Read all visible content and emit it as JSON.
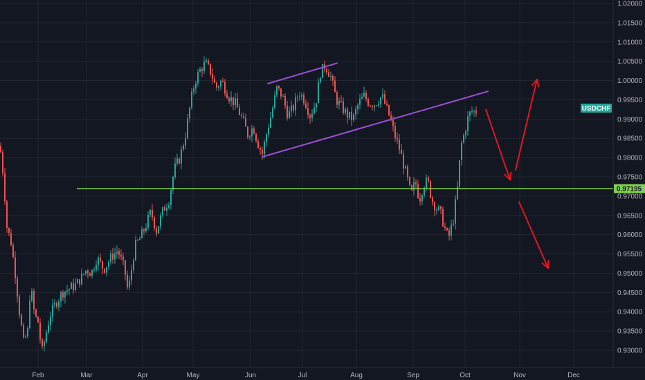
{
  "chart_data": {
    "type": "candlestick",
    "symbol": "USDCHF",
    "horizontal_line_price": "0.97195",
    "y_ticks": [
      "1.02000",
      "1.01500",
      "1.01000",
      "1.00500",
      "1.00000",
      "0.99500",
      "0.99000",
      "0.98500",
      "0.98000",
      "0.97500",
      "0.97000",
      "0.96500",
      "0.96000",
      "0.95500",
      "0.95000",
      "0.94500",
      "0.94000",
      "0.93500",
      "0.93000"
    ],
    "x_ticks": [
      "Feb",
      "Mar",
      "Apr",
      "May",
      "Jun",
      "Jul",
      "Aug",
      "Sep",
      "Oct",
      "Nov",
      "Dec"
    ],
    "ylim": [
      0.9285,
      1.0213
    ],
    "grid": true,
    "close_path": [
      {
        "t": 0,
        "p": 0.983
      },
      {
        "t": 5,
        "p": 0.975
      },
      {
        "t": 10,
        "p": 0.962
      },
      {
        "t": 16,
        "p": 0.958
      },
      {
        "t": 22,
        "p": 0.95
      },
      {
        "t": 28,
        "p": 0.94
      },
      {
        "t": 34,
        "p": 0.932
      },
      {
        "t": 40,
        "p": 0.935
      },
      {
        "t": 44,
        "p": 0.947
      },
      {
        "t": 50,
        "p": 0.939
      },
      {
        "t": 56,
        "p": 0.937
      },
      {
        "t": 60,
        "p": 0.929
      },
      {
        "t": 65,
        "p": 0.933
      },
      {
        "t": 72,
        "p": 0.939
      },
      {
        "t": 80,
        "p": 0.942
      },
      {
        "t": 90,
        "p": 0.945
      },
      {
        "t": 100,
        "p": 0.946
      },
      {
        "t": 110,
        "p": 0.947
      },
      {
        "t": 118,
        "p": 0.949
      },
      {
        "t": 125,
        "p": 0.951
      },
      {
        "t": 132,
        "p": 0.95
      },
      {
        "t": 140,
        "p": 0.954
      },
      {
        "t": 150,
        "p": 0.951
      },
      {
        "t": 160,
        "p": 0.954
      },
      {
        "t": 170,
        "p": 0.956
      },
      {
        "t": 180,
        "p": 0.951
      },
      {
        "t": 185,
        "p": 0.945
      },
      {
        "t": 195,
        "p": 0.957
      },
      {
        "t": 202,
        "p": 0.959
      },
      {
        "t": 210,
        "p": 0.962
      },
      {
        "t": 218,
        "p": 0.966
      },
      {
        "t": 226,
        "p": 0.961
      },
      {
        "t": 235,
        "p": 0.966
      },
      {
        "t": 244,
        "p": 0.969
      },
      {
        "t": 252,
        "p": 0.977
      },
      {
        "t": 260,
        "p": 0.98
      },
      {
        "t": 268,
        "p": 0.986
      },
      {
        "t": 276,
        "p": 0.995
      },
      {
        "t": 282,
        "p": 1.0
      },
      {
        "t": 290,
        "p": 1.003
      },
      {
        "t": 297,
        "p": 1.0045
      },
      {
        "t": 305,
        "p": 1.002
      },
      {
        "t": 312,
        "p": 0.998
      },
      {
        "t": 320,
        "p": 1.0
      },
      {
        "t": 330,
        "p": 0.996
      },
      {
        "t": 340,
        "p": 0.994
      },
      {
        "t": 350,
        "p": 0.99
      },
      {
        "t": 358,
        "p": 0.986
      },
      {
        "t": 366,
        "p": 0.988
      },
      {
        "t": 372,
        "p": 0.984
      },
      {
        "t": 379,
        "p": 0.981
      },
      {
        "t": 386,
        "p": 0.987
      },
      {
        "t": 393,
        "p": 0.992
      },
      {
        "t": 400,
        "p": 0.998
      },
      {
        "t": 408,
        "p": 0.996
      },
      {
        "t": 416,
        "p": 0.991
      },
      {
        "t": 424,
        "p": 0.993
      },
      {
        "t": 432,
        "p": 0.997
      },
      {
        "t": 440,
        "p": 0.995
      },
      {
        "t": 448,
        "p": 0.991
      },
      {
        "t": 456,
        "p": 0.994
      },
      {
        "t": 463,
        "p": 1.002
      },
      {
        "t": 470,
        "p": 1.004
      },
      {
        "t": 478,
        "p": 1.001
      },
      {
        "t": 486,
        "p": 0.995
      },
      {
        "t": 494,
        "p": 0.993
      },
      {
        "t": 502,
        "p": 0.991
      },
      {
        "t": 510,
        "p": 0.99
      },
      {
        "t": 518,
        "p": 0.994
      },
      {
        "t": 526,
        "p": 0.996
      },
      {
        "t": 534,
        "p": 0.994
      },
      {
        "t": 542,
        "p": 0.994
      },
      {
        "t": 552,
        "p": 0.996
      },
      {
        "t": 558,
        "p": 0.993
      },
      {
        "t": 564,
        "p": 0.99
      },
      {
        "t": 570,
        "p": 0.986
      },
      {
        "t": 576,
        "p": 0.983
      },
      {
        "t": 582,
        "p": 0.979
      },
      {
        "t": 588,
        "p": 0.975
      },
      {
        "t": 594,
        "p": 0.97
      },
      {
        "t": 600,
        "p": 0.974
      },
      {
        "t": 606,
        "p": 0.969
      },
      {
        "t": 612,
        "p": 0.973
      },
      {
        "t": 618,
        "p": 0.974
      },
      {
        "t": 624,
        "p": 0.969
      },
      {
        "t": 630,
        "p": 0.967
      },
      {
        "t": 636,
        "p": 0.966
      },
      {
        "t": 642,
        "p": 0.962
      },
      {
        "t": 648,
        "p": 0.959
      },
      {
        "t": 655,
        "p": 0.964
      },
      {
        "t": 661,
        "p": 0.972
      },
      {
        "t": 666,
        "p": 0.983
      },
      {
        "t": 672,
        "p": 0.987
      },
      {
        "t": 677,
        "p": 0.991
      },
      {
        "t": 682,
        "p": 0.992
      },
      {
        "t": 688,
        "p": 0.992
      }
    ],
    "trendlines": [
      {
        "name": "channel-upper",
        "from": {
          "t": 387,
          "p": 0.9992
        },
        "to": {
          "t": 487,
          "p": 1.0045
        }
      },
      {
        "name": "channel-lower",
        "from": {
          "t": 379,
          "p": 0.9802
        },
        "to": {
          "t": 705,
          "p": 0.9972
        }
      }
    ],
    "forecast_arrows": [
      {
        "name": "arrow-down-to-support",
        "from": {
          "t": 702,
          "p": 0.9925
        },
        "to": {
          "t": 737,
          "p": 0.9742
        }
      },
      {
        "name": "arrow-up-breakout",
        "from": {
          "t": 745,
          "p": 0.9768
        },
        "to": {
          "t": 776,
          "p": 1.0003
        }
      },
      {
        "name": "arrow-down-breakdown",
        "from": {
          "t": 750,
          "p": 0.9685
        },
        "to": {
          "t": 792,
          "p": 0.9513
        }
      }
    ]
  },
  "colors": {
    "background": "#131722",
    "grid": "#22262f",
    "up": "#26a69a",
    "down": "#ef5350",
    "trendline": "#9c4fd9",
    "support": "#7fd14f",
    "arrows": "#e0171f",
    "axis_text": "#b2b5be"
  }
}
